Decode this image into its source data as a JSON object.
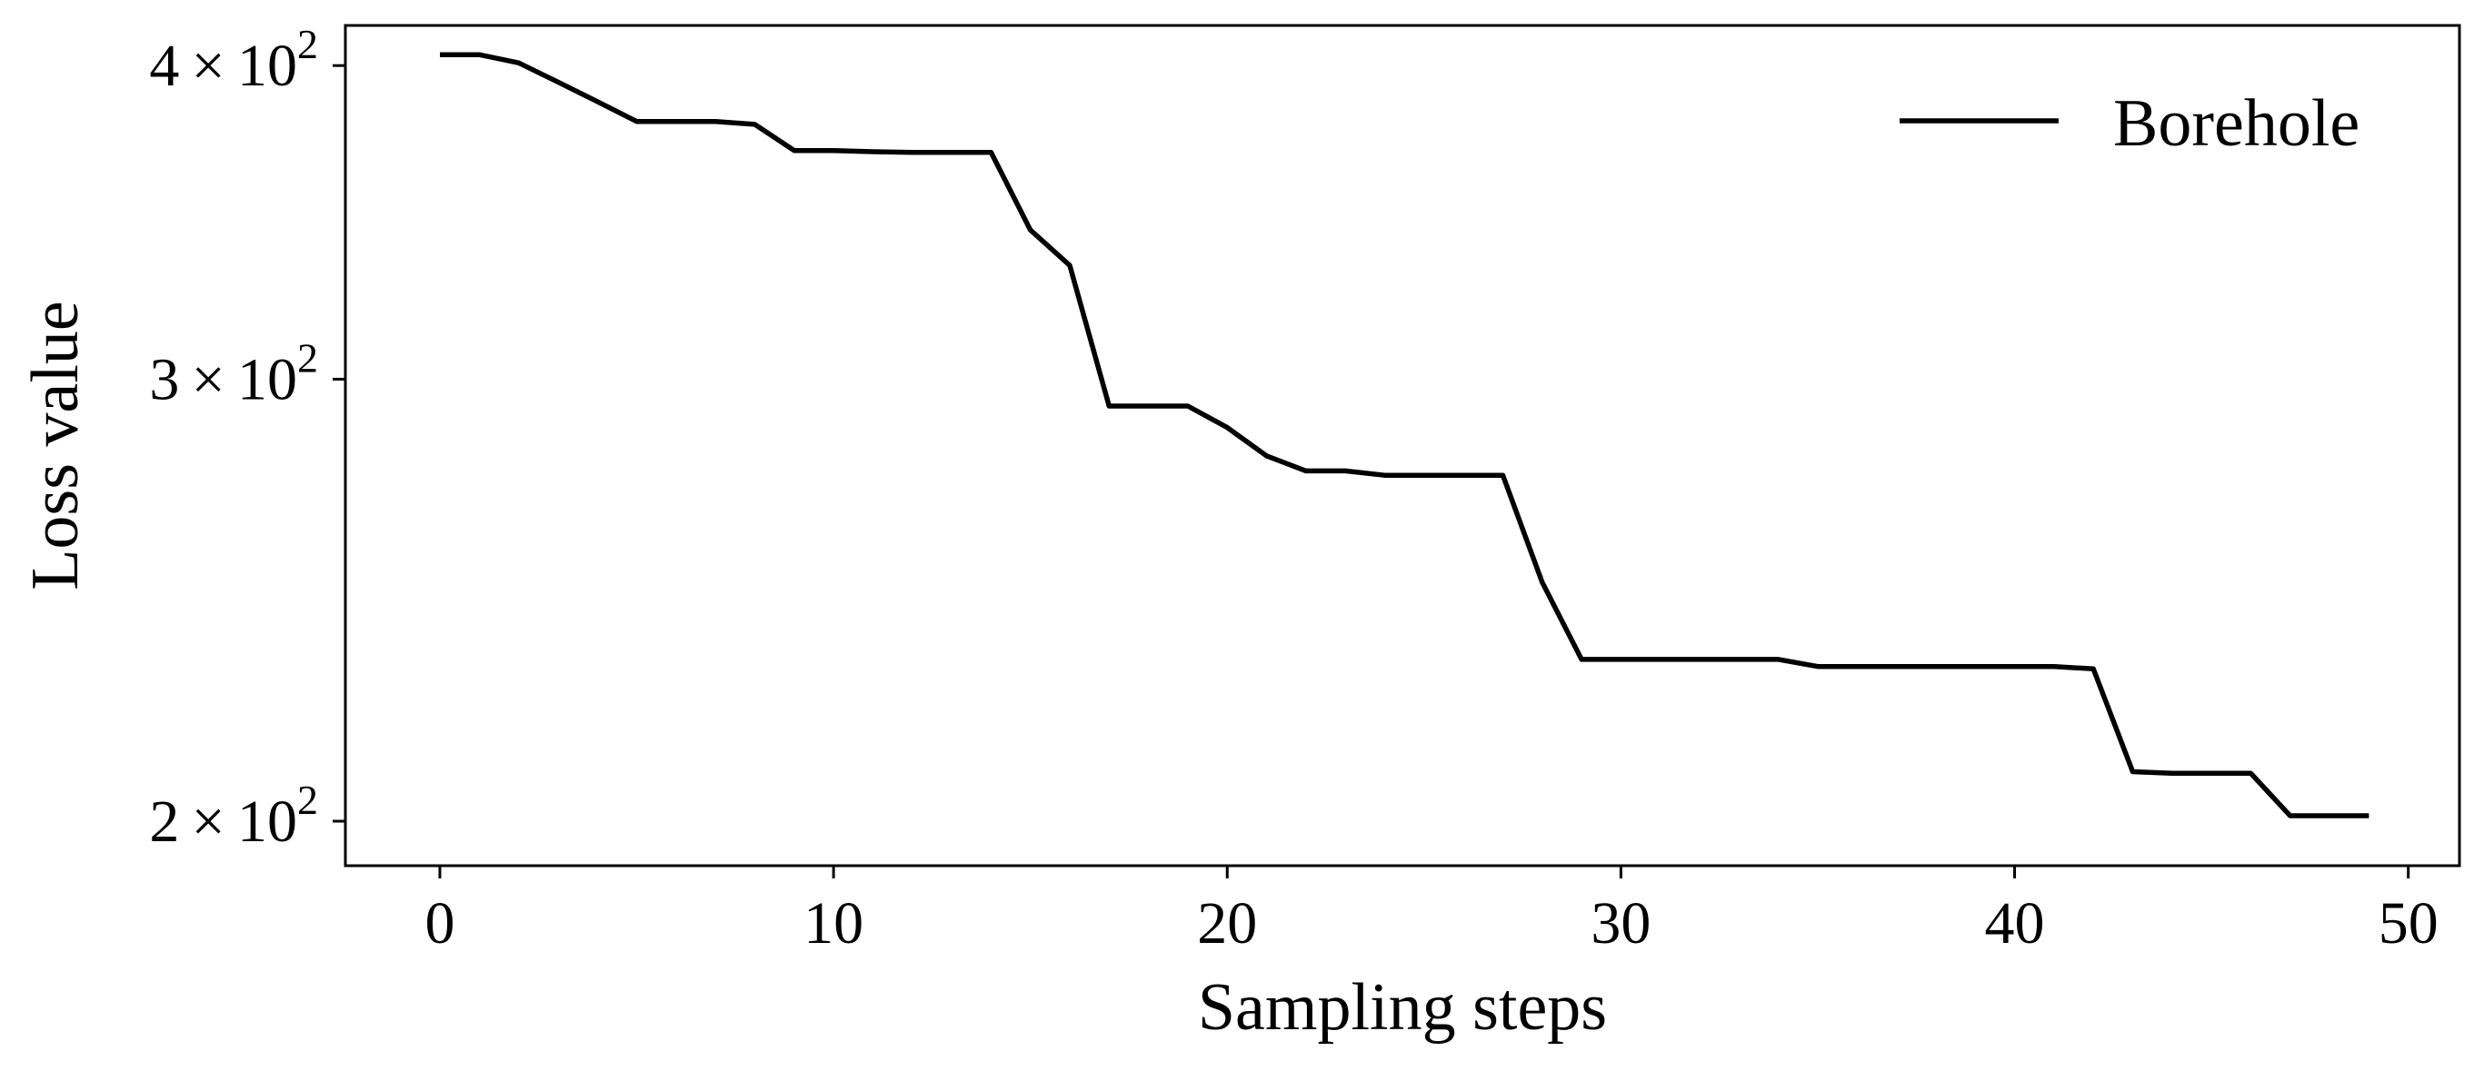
{
  "chart_data": {
    "type": "line",
    "xlabel": "Sampling steps",
    "ylabel": "Loss value",
    "xlim": [
      -2.4,
      51.3
    ],
    "ylim": [
      192,
      415
    ],
    "y_scale": "log",
    "grid": false,
    "legend_position": "top-right",
    "x_ticks": [
      0,
      10,
      20,
      30,
      40,
      50
    ],
    "x_tick_labels": [
      "0",
      "10",
      "20",
      "30",
      "40",
      "50"
    ],
    "y_ticks": [
      {
        "value": 200,
        "mantissa": "2",
        "times": "×",
        "base": "10",
        "exponent": "2"
      },
      {
        "value": 300,
        "mantissa": "3",
        "times": "×",
        "base": "10",
        "exponent": "2"
      },
      {
        "value": 400,
        "mantissa": "4",
        "times": "×",
        "base": "10",
        "exponent": "2"
      }
    ],
    "line_color": "#000000",
    "series": [
      {
        "name": "Borehole",
        "x": [
          0,
          1,
          2,
          3,
          4,
          5,
          6,
          7,
          8,
          9,
          10,
          11,
          12,
          13,
          14,
          15,
          16,
          17,
          18,
          19,
          20,
          21,
          22,
          23,
          24,
          25,
          26,
          27,
          28,
          29,
          30,
          31,
          32,
          33,
          34,
          35,
          36,
          37,
          38,
          39,
          40,
          41,
          42,
          43,
          44,
          45,
          46,
          47,
          48,
          49
        ],
        "y": [
          404,
          404,
          401,
          394,
          387,
          380,
          380,
          380,
          379,
          370,
          370,
          369.6,
          369.4,
          369.4,
          369.4,
          344,
          333,
          292.7,
          292.7,
          292.7,
          287,
          279.6,
          275.8,
          275.8,
          274.7,
          274.7,
          274.7,
          274.7,
          249,
          232,
          232,
          232,
          232,
          232,
          232,
          230.5,
          230.5,
          230.5,
          230.5,
          230.5,
          230.5,
          230.5,
          230,
          209.3,
          209,
          209,
          209,
          201,
          201,
          201
        ]
      }
    ]
  }
}
